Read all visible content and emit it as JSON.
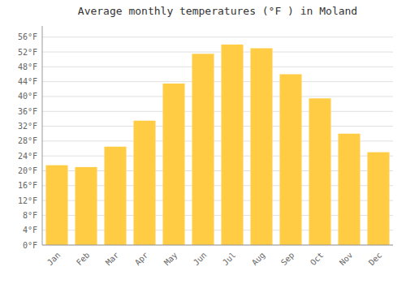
{
  "chart_data": {
    "type": "bar",
    "title": "Average monthly temperatures (°F ) in Moland",
    "categories": [
      "Jan",
      "Feb",
      "Mar",
      "Apr",
      "May",
      "Jun",
      "Jul",
      "Aug",
      "Sep",
      "Oct",
      "Nov",
      "Dec"
    ],
    "values": [
      21.5,
      21.0,
      26.5,
      33.5,
      43.5,
      51.5,
      54.0,
      53.0,
      46.0,
      39.5,
      30.0,
      25.0
    ],
    "color": "#FFCC44",
    "ylim": [
      0,
      59
    ],
    "yticks": [
      {
        "value": 0,
        "label": "0°F"
      },
      {
        "value": 4,
        "label": "4°F"
      },
      {
        "value": 8,
        "label": "8°F"
      },
      {
        "value": 12,
        "label": "12°F"
      },
      {
        "value": 16,
        "label": "16°F"
      },
      {
        "value": 20,
        "label": "20°F"
      },
      {
        "value": 24,
        "label": "24°F"
      },
      {
        "value": 28,
        "label": "28°F"
      },
      {
        "value": 32,
        "label": "32°F"
      },
      {
        "value": 36,
        "label": "36°F"
      },
      {
        "value": 40,
        "label": "40°F"
      },
      {
        "value": 44,
        "label": "44°F"
      },
      {
        "value": 48,
        "label": "48°F"
      },
      {
        "value": 52,
        "label": "52°F"
      },
      {
        "value": 56,
        "label": "56°F"
      }
    ],
    "grid": true
  }
}
